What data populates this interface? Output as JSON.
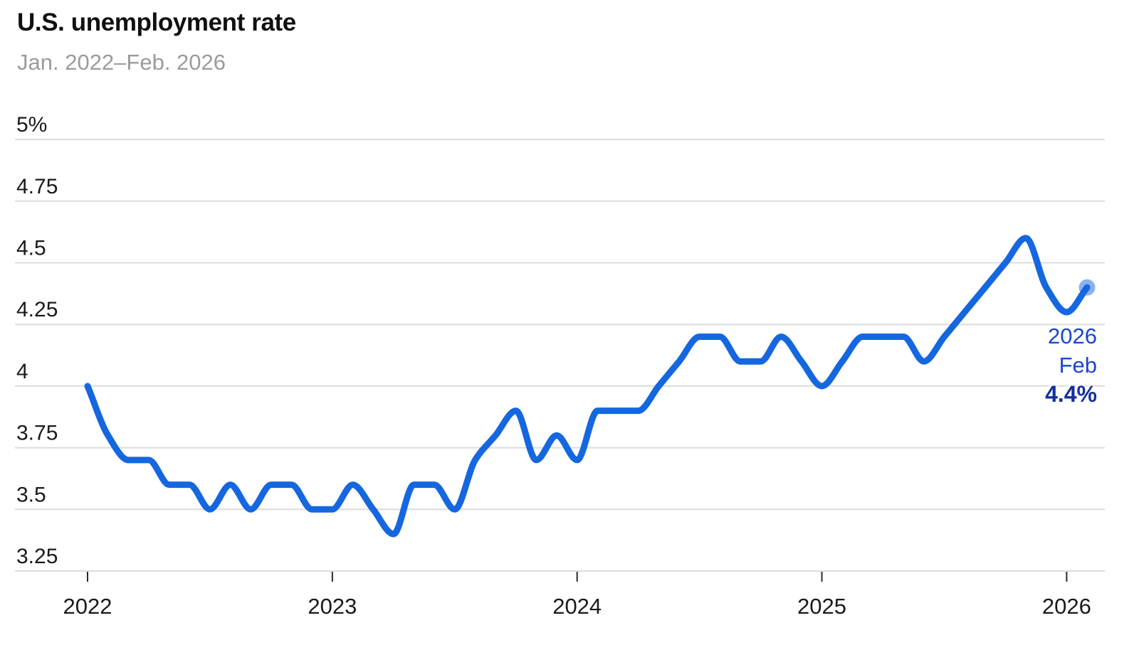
{
  "header": {
    "title": "U.S. unemployment rate",
    "subtitle": "Jan. 2022–Feb. 2026"
  },
  "chart_data": {
    "type": "line",
    "title": "U.S. unemployment rate",
    "subtitle": "Jan. 2022–Feb. 2026",
    "unit": "%",
    "grid": "horizontal",
    "ylim": [
      3.25,
      5.0
    ],
    "months": [
      "2022-01",
      "2022-02",
      "2022-03",
      "2022-04",
      "2022-05",
      "2022-06",
      "2022-07",
      "2022-08",
      "2022-09",
      "2022-10",
      "2022-11",
      "2022-12",
      "2023-01",
      "2023-02",
      "2023-03",
      "2023-04",
      "2023-05",
      "2023-06",
      "2023-07",
      "2023-08",
      "2023-09",
      "2023-10",
      "2023-11",
      "2023-12",
      "2024-01",
      "2024-02",
      "2024-03",
      "2024-04",
      "2024-05",
      "2024-06",
      "2024-07",
      "2024-08",
      "2024-09",
      "2024-10",
      "2024-11",
      "2024-12",
      "2025-01",
      "2025-02",
      "2025-03",
      "2025-04",
      "2025-05",
      "2025-06",
      "2025-07",
      "2025-08",
      "2025-09",
      "2025-10",
      "2025-11",
      "2025-12",
      "2026-01",
      "2026-02"
    ],
    "values": [
      4.0,
      3.8,
      3.7,
      3.7,
      3.6,
      3.6,
      3.5,
      3.6,
      3.5,
      3.6,
      3.6,
      3.5,
      3.5,
      3.6,
      3.5,
      3.4,
      3.6,
      3.6,
      3.5,
      3.7,
      3.8,
      3.9,
      3.7,
      3.8,
      3.7,
      3.9,
      3.9,
      3.9,
      4.0,
      4.1,
      4.2,
      4.2,
      4.1,
      4.1,
      4.2,
      4.1,
      4.0,
      4.1,
      4.2,
      4.2,
      4.2,
      4.1,
      4.2,
      4.3,
      4.4,
      4.5,
      4.6,
      4.4,
      4.3,
      4.4
    ],
    "yticks": [
      {
        "value": 3.25,
        "label": "3.25"
      },
      {
        "value": 3.5,
        "label": "3.5"
      },
      {
        "value": 3.75,
        "label": "3.75"
      },
      {
        "value": 4.0,
        "label": "4"
      },
      {
        "value": 4.25,
        "label": "4.25"
      },
      {
        "value": 4.5,
        "label": "4.5"
      },
      {
        "value": 4.75,
        "label": "4.75"
      },
      {
        "value": 5.0,
        "label": "5%"
      }
    ],
    "xticks": [
      {
        "month": "2022-01",
        "label": "2022"
      },
      {
        "month": "2023-01",
        "label": "2023"
      },
      {
        "month": "2024-01",
        "label": "2024"
      },
      {
        "month": "2025-01",
        "label": "2025"
      },
      {
        "month": "2026-01",
        "label": "2026"
      }
    ],
    "end_point": {
      "month": "2026-02",
      "value": 4.4
    },
    "annotation": {
      "year": "2026",
      "month": "Feb",
      "value": "4.4%"
    },
    "legend": "none"
  },
  "colors": {
    "line": "#1567e0",
    "end_halo": "#1567e0",
    "grid": "#dcdcdc",
    "axis_text": "#1a1a1a",
    "tick_mark": "#2b2b2b",
    "annotation_text": "#1b46c6",
    "annotation_value_text": "#14309c"
  }
}
